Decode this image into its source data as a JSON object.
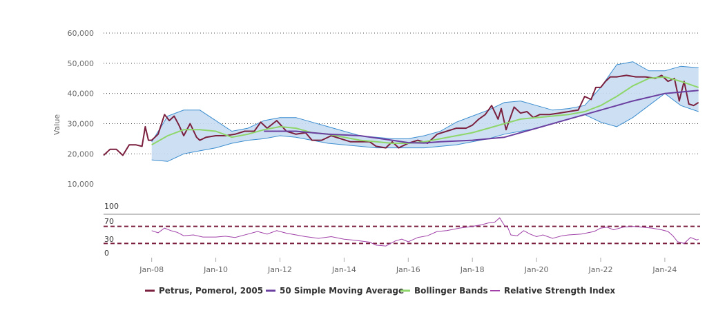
{
  "chart_data": {
    "type": "line",
    "ylabel": "Value",
    "grid": true,
    "legend_position": "bottom-center",
    "x_range": [
      2006.5,
      2025.1
    ],
    "x_ticks": [
      2008,
      2010,
      2012,
      2014,
      2016,
      2018,
      2020,
      2022,
      2024
    ],
    "x_tick_labels": [
      "Jan-08",
      "Jan-10",
      "Jan-12",
      "Jan-14",
      "Jan-16",
      "Jan-18",
      "Jan-20",
      "Jan-22",
      "Jan-24"
    ],
    "ylim": [
      0,
      60000
    ],
    "y_ticks": [
      10000,
      20000,
      30000,
      40000,
      50000,
      60000
    ],
    "y_tick_labels": [
      "10,000",
      "20,000",
      "30,000",
      "40,000",
      "50,000",
      "60,000"
    ],
    "rsi_ylim": [
      0,
      100
    ],
    "rsi_tick_labels": [
      "100",
      "70",
      "30",
      "0"
    ],
    "rsi_levels": [
      70,
      30
    ],
    "colors": {
      "price": "#7a1f3d",
      "sma": "#6a3fa0",
      "bollinger_mid": "#8ed66a",
      "bollinger_band_fill": "#c8ddf2",
      "bollinger_band_stroke": "#3a8ccf",
      "rsi": "#a040a8",
      "rsi_level": "#7a1f3d",
      "grid": "#444444"
    },
    "series": [
      {
        "name": "Petrus, Pomerol, 2005",
        "x": [
          2006.5,
          2006.7,
          2006.9,
          2007.1,
          2007.3,
          2007.5,
          2007.7,
          2007.8,
          2007.9,
          2008.0,
          2008.2,
          2008.4,
          2008.55,
          2008.7,
          2008.85,
          2009.0,
          2009.2,
          2009.4,
          2009.5,
          2009.7,
          2010.0,
          2010.3,
          2010.6,
          2010.9,
          2011.2,
          2011.4,
          2011.6,
          2011.9,
          2012.2,
          2012.5,
          2012.8,
          2013.0,
          2013.3,
          2013.6,
          2013.9,
          2014.2,
          2014.5,
          2014.8,
          2015.0,
          2015.3,
          2015.5,
          2015.7,
          2016.0,
          2016.3,
          2016.6,
          2016.9,
          2017.2,
          2017.5,
          2017.8,
          2018.0,
          2018.2,
          2018.4,
          2018.6,
          2018.8,
          2018.9,
          2019.05,
          2019.15,
          2019.3,
          2019.5,
          2019.7,
          2019.9,
          2020.1,
          2020.4,
          2020.7,
          2021.0,
          2021.3,
          2021.5,
          2021.7,
          2021.85,
          2022.0,
          2022.15,
          2022.3,
          2022.5,
          2022.8,
          2023.1,
          2023.4,
          2023.7,
          2023.9,
          2024.1,
          2024.3,
          2024.45,
          2024.6,
          2024.75,
          2024.9,
          2025.05
        ],
        "values": [
          19500,
          21500,
          21500,
          19500,
          23000,
          23000,
          22500,
          29000,
          24500,
          24500,
          26500,
          33000,
          31000,
          32500,
          29500,
          26000,
          30000,
          25500,
          24500,
          25500,
          26000,
          26000,
          26500,
          27500,
          27500,
          30500,
          28500,
          31000,
          27500,
          26500,
          27000,
          24500,
          24500,
          26000,
          25000,
          24000,
          24000,
          24000,
          22500,
          22000,
          24000,
          22000,
          23500,
          24500,
          23500,
          26500,
          27500,
          28500,
          28500,
          29500,
          31500,
          33000,
          36000,
          31500,
          35000,
          28000,
          31000,
          35500,
          33500,
          34000,
          32000,
          33000,
          33000,
          33500,
          34000,
          34500,
          39000,
          38000,
          42000,
          42000,
          44000,
          45500,
          45500,
          46000,
          45500,
          45500,
          45000,
          46000,
          44000,
          45000,
          37500,
          44000,
          36500,
          36000,
          37000
        ]
      },
      {
        "name": "50 Simple Moving Average",
        "x": [
          2011.5,
          2012.5,
          2013.5,
          2014.5,
          2015.5,
          2016.0,
          2016.5,
          2017.0,
          2018.0,
          2019.0,
          2020.0,
          2021.0,
          2022.0,
          2023.0,
          2024.0,
          2025.05
        ],
        "values": [
          27500,
          27500,
          26500,
          26000,
          24500,
          23700,
          23600,
          24000,
          24500,
          25500,
          28500,
          31500,
          34500,
          37500,
          40000,
          41000
        ]
      },
      {
        "name": "Bollinger Bands",
        "x": [
          2008.0,
          2008.5,
          2009.0,
          2009.5,
          2010.0,
          2010.5,
          2011.0,
          2011.5,
          2012.0,
          2012.5,
          2013.0,
          2013.5,
          2014.0,
          2014.5,
          2015.0,
          2015.5,
          2016.0,
          2016.5,
          2017.0,
          2017.5,
          2018.0,
          2018.5,
          2019.0,
          2019.5,
          2020.0,
          2020.5,
          2021.0,
          2021.5,
          2022.0,
          2022.5,
          2023.0,
          2023.5,
          2024.0,
          2024.5,
          2025.05
        ],
        "values": [
          23000,
          26000,
          28000,
          28000,
          27500,
          25500,
          26500,
          28000,
          29000,
          28500,
          27000,
          26500,
          25500,
          24500,
          24000,
          23500,
          23500,
          24000,
          25000,
          26000,
          27000,
          28500,
          30000,
          31500,
          32000,
          32500,
          33000,
          34000,
          36000,
          39000,
          42500,
          45000,
          45500,
          44000,
          42000
        ],
        "upper": [
          24000,
          32500,
          34500,
          34500,
          31000,
          27500,
          28500,
          31000,
          32000,
          32000,
          30500,
          29000,
          27500,
          26000,
          25500,
          25000,
          25000,
          26000,
          27500,
          30500,
          32500,
          34500,
          37000,
          37500,
          36000,
          34500,
          35000,
          36000,
          42000,
          49500,
          50500,
          47500,
          47500,
          49000,
          48500
        ],
        "lower": [
          18000,
          17500,
          20000,
          21000,
          22000,
          23500,
          24500,
          25000,
          26000,
          25500,
          24500,
          23500,
          23000,
          22500,
          22000,
          22000,
          22000,
          22000,
          22500,
          23000,
          24000,
          25000,
          26500,
          27500,
          28500,
          30000,
          31500,
          33000,
          30500,
          29000,
          32000,
          36000,
          40000,
          36000,
          34000
        ]
      },
      {
        "name": "Relative Strength Index",
        "x": [
          2008.0,
          2008.2,
          2008.4,
          2008.6,
          2008.8,
          2009.0,
          2009.3,
          2009.6,
          2010.0,
          2010.3,
          2010.6,
          2011.0,
          2011.3,
          2011.6,
          2011.9,
          2012.2,
          2012.5,
          2012.8,
          2013.2,
          2013.6,
          2014.0,
          2014.4,
          2014.8,
          2015.0,
          2015.3,
          2015.6,
          2015.8,
          2016.0,
          2016.3,
          2016.6,
          2016.9,
          2017.2,
          2017.6,
          2018.0,
          2018.3,
          2018.5,
          2018.7,
          2018.85,
          2019.0,
          2019.1,
          2019.2,
          2019.4,
          2019.6,
          2019.8,
          2020.0,
          2020.2,
          2020.5,
          2020.8,
          2021.0,
          2021.4,
          2021.8,
          2022.0,
          2022.2,
          2022.4,
          2022.7,
          2023.0,
          2023.3,
          2023.6,
          2023.9,
          2024.1,
          2024.25,
          2024.4,
          2024.6,
          2024.8,
          2025.0,
          2025.05
        ],
        "values": [
          60,
          55,
          66,
          60,
          56,
          48,
          50,
          45,
          45,
          47,
          44,
          52,
          58,
          52,
          60,
          54,
          50,
          46,
          42,
          46,
          40,
          37,
          33,
          26,
          24,
          36,
          40,
          34,
          44,
          48,
          58,
          60,
          66,
          70,
          74,
          78,
          80,
          90,
          72,
          68,
          50,
          48,
          60,
          52,
          46,
          50,
          42,
          48,
          50,
          52,
          58,
          66,
          68,
          62,
          68,
          70,
          68,
          66,
          62,
          58,
          48,
          34,
          30,
          44,
          38,
          40
        ]
      }
    ]
  }
}
